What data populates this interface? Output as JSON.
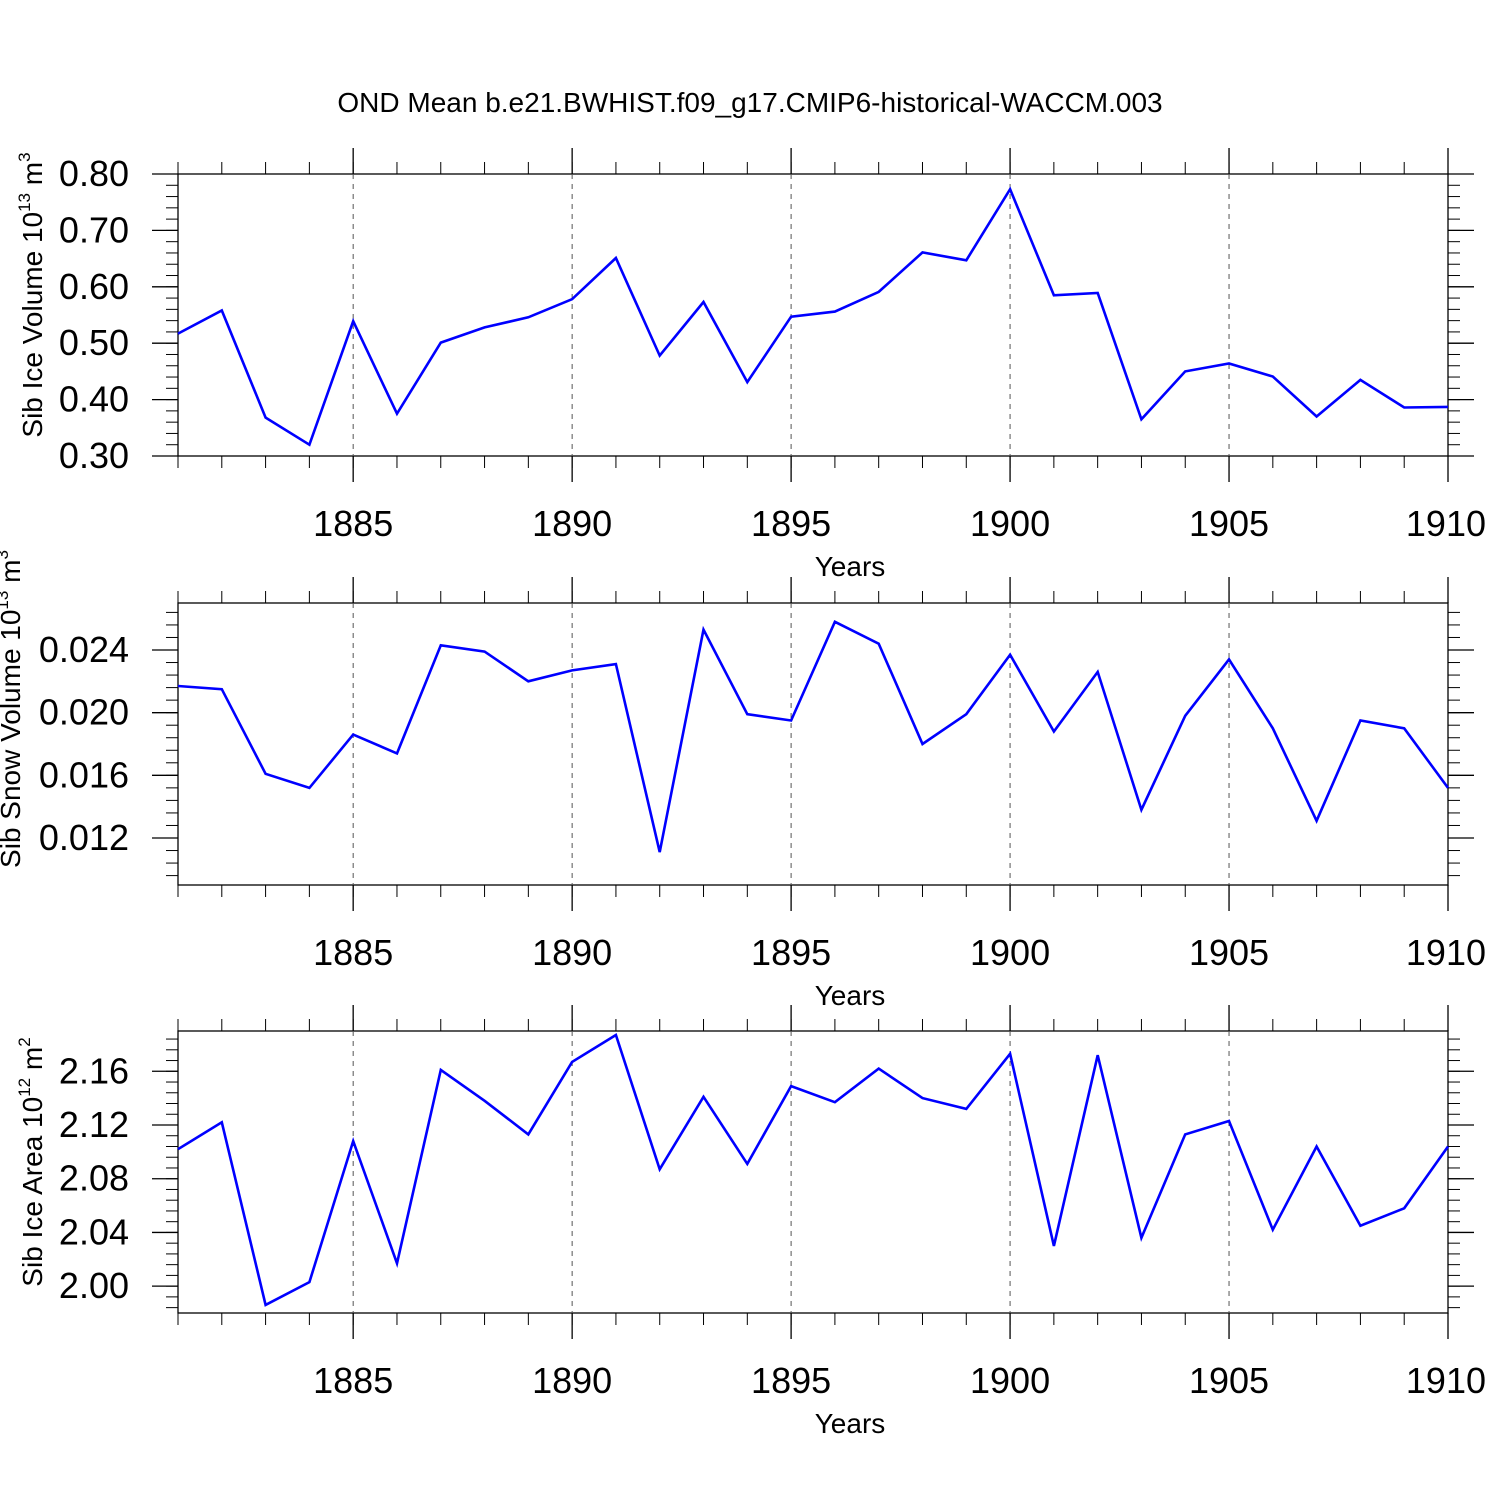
{
  "title": "OND Mean b.e21.BWHIST.f09_g17.CMIP6-historical-WACCM.003",
  "colors": {
    "line": "#0000ff",
    "frame": "#000000",
    "grid": "#555555"
  },
  "chart_data": [
    {
      "type": "line",
      "xlabel": "Years",
      "ylabel": {
        "text": "Sib Ice Volume 10",
        "sup1": "13",
        "mid": " m",
        "sup2": "3"
      },
      "x": [
        1881,
        1882,
        1883,
        1884,
        1885,
        1886,
        1887,
        1888,
        1889,
        1890,
        1891,
        1892,
        1893,
        1894,
        1895,
        1896,
        1897,
        1898,
        1899,
        1900,
        1901,
        1902,
        1903,
        1904,
        1905,
        1906,
        1907,
        1908,
        1909,
        1910
      ],
      "values": [
        0.517,
        0.558,
        0.368,
        0.32,
        0.539,
        0.375,
        0.501,
        0.528,
        0.546,
        0.578,
        0.651,
        0.478,
        0.573,
        0.431,
        0.547,
        0.556,
        0.591,
        0.661,
        0.647,
        0.773,
        0.585,
        0.589,
        0.365,
        0.45,
        0.464,
        0.441,
        0.37,
        0.435,
        0.386,
        0.387
      ],
      "xlim": [
        1881,
        1910
      ],
      "ylim": [
        0.3,
        0.8
      ],
      "xticks": [
        "1885",
        "1890",
        "1895",
        "1900",
        "1905",
        "1910"
      ],
      "yticks": [
        "0.30",
        "0.40",
        "0.50",
        "0.60",
        "0.70",
        "0.80"
      ]
    },
    {
      "type": "line",
      "xlabel": "Years",
      "ylabel": {
        "text": "Sib Snow Volume 10",
        "sup1": "13",
        "mid": " m",
        "sup2": "3"
      },
      "x": [
        1881,
        1882,
        1883,
        1884,
        1885,
        1886,
        1887,
        1888,
        1889,
        1890,
        1891,
        1892,
        1893,
        1894,
        1895,
        1896,
        1897,
        1898,
        1899,
        1900,
        1901,
        1902,
        1903,
        1904,
        1905,
        1906,
        1907,
        1908,
        1909,
        1910
      ],
      "values": [
        0.0217,
        0.0215,
        0.0161,
        0.0152,
        0.0186,
        0.0174,
        0.0243,
        0.0239,
        0.022,
        0.0227,
        0.0231,
        0.0111,
        0.0253,
        0.0199,
        0.0195,
        0.0258,
        0.0244,
        0.018,
        0.0199,
        0.0237,
        0.0188,
        0.0226,
        0.0138,
        0.0198,
        0.0234,
        0.019,
        0.0131,
        0.0195,
        0.019,
        0.0152
      ],
      "xlim": [
        1881,
        1910
      ],
      "ylim": [
        0.009,
        0.027
      ],
      "xticks": [
        "1885",
        "1890",
        "1895",
        "1900",
        "1905",
        "1910"
      ],
      "yticks": [
        "0.012",
        "0.016",
        "0.020",
        "0.024"
      ]
    },
    {
      "type": "line",
      "xlabel": "Years",
      "ylabel": {
        "text": "Sib Ice Area 10",
        "sup1": "12",
        "mid": " m",
        "sup2": "2"
      },
      "x": [
        1881,
        1882,
        1883,
        1884,
        1885,
        1886,
        1887,
        1888,
        1889,
        1890,
        1891,
        1892,
        1893,
        1894,
        1895,
        1896,
        1897,
        1898,
        1899,
        1900,
        1901,
        1902,
        1903,
        1904,
        1905,
        1906,
        1907,
        1908,
        1909,
        1910
      ],
      "values": [
        2.102,
        2.122,
        1.986,
        2.003,
        2.108,
        2.017,
        2.161,
        2.138,
        2.113,
        2.167,
        2.187,
        2.087,
        2.141,
        2.091,
        2.149,
        2.137,
        2.162,
        2.14,
        2.132,
        2.173,
        2.03,
        2.172,
        2.036,
        2.113,
        2.123,
        2.042,
        2.104,
        2.045,
        2.058,
        2.104
      ],
      "xlim": [
        1881,
        1910
      ],
      "ylim": [
        1.98,
        2.19
      ],
      "xticks": [
        "1885",
        "1890",
        "1895",
        "1900",
        "1905",
        "1910"
      ],
      "yticks": [
        "2.00",
        "2.04",
        "2.08",
        "2.12",
        "2.16"
      ]
    }
  ]
}
